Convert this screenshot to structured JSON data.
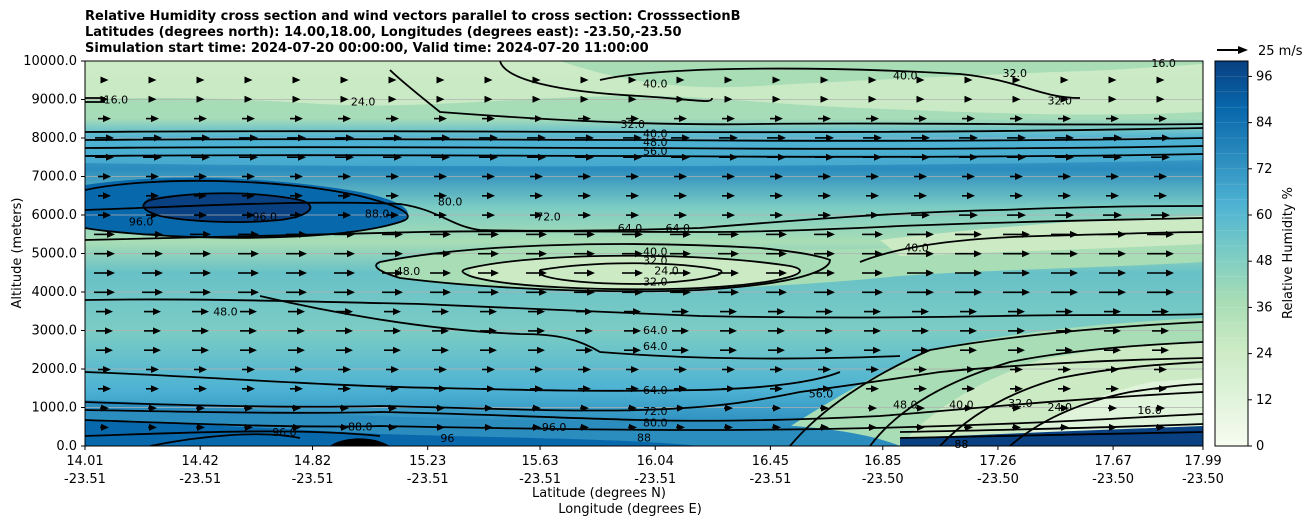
{
  "chart_data": {
    "type": "contour",
    "title_lines": [
      "Relative Humidity cross section and wind vectors parallel to cross section: CrosssectionB",
      "Latitudes (degrees north): 14.00,18.00, Longitudes (degrees east): -23.50,-23.50",
      "Simulation start time: 2024-07-20 00:00:00, Valid time: 2024-07-20 11:00:00"
    ],
    "xlabel_lines": [
      "Latitude (degrees N)",
      "Longitude (degrees E)"
    ],
    "ylabel": "Altitude (meters)",
    "ylim": [
      0,
      10000
    ],
    "y_ticks": [
      "0.0",
      "1000.0",
      "2000.0",
      "3000.0",
      "4000.0",
      "5000.0",
      "6000.0",
      "7000.0",
      "8000.0",
      "9000.0",
      "10000.0"
    ],
    "y_tick_values": [
      0,
      1000,
      2000,
      3000,
      4000,
      5000,
      6000,
      7000,
      8000,
      9000,
      10000
    ],
    "x_ticks": [
      {
        "lat": "14.01",
        "lon": "-23.51"
      },
      {
        "lat": "14.42",
        "lon": "-23.51"
      },
      {
        "lat": "14.82",
        "lon": "-23.51"
      },
      {
        "lat": "15.23",
        "lon": "-23.51"
      },
      {
        "lat": "15.63",
        "lon": "-23.51"
      },
      {
        "lat": "16.04",
        "lon": "-23.51"
      },
      {
        "lat": "16.45",
        "lon": "-23.51"
      },
      {
        "lat": "16.85",
        "lon": "-23.50"
      },
      {
        "lat": "17.26",
        "lon": "-23.50"
      },
      {
        "lat": "17.67",
        "lon": "-23.50"
      },
      {
        "lat": "17.99",
        "lon": "-23.50"
      }
    ],
    "colorbar": {
      "label": "Relative Humidity %",
      "ticks": [
        "0",
        "12",
        "24",
        "36",
        "48",
        "60",
        "72",
        "84",
        "96"
      ],
      "tick_values": [
        0,
        12,
        24,
        36,
        48,
        60,
        72,
        84,
        96
      ],
      "max": 100,
      "colormap": "GnBu"
    },
    "quiver_key": "25 m/s",
    "contour_labels": [
      {
        "text": "16.0",
        "lat": 14.12,
        "alt": 9000
      },
      {
        "text": "24.0",
        "lat": 15.0,
        "alt": 8950
      },
      {
        "text": "40.0",
        "lat": 16.04,
        "alt": 9420
      },
      {
        "text": "40.0",
        "lat": 16.93,
        "alt": 9620
      },
      {
        "text": "32.0",
        "lat": 17.32,
        "alt": 9690
      },
      {
        "text": "32.0",
        "lat": 17.48,
        "alt": 8980
      },
      {
        "text": "16.0",
        "lat": 17.85,
        "alt": 9950
      },
      {
        "text": "32.0",
        "lat": 15.96,
        "alt": 8360
      },
      {
        "text": "40.0",
        "lat": 16.04,
        "alt": 8120
      },
      {
        "text": "48.0",
        "lat": 16.04,
        "alt": 7890
      },
      {
        "text": "56.0",
        "lat": 16.04,
        "alt": 7660
      },
      {
        "text": "96.0",
        "lat": 14.21,
        "alt": 5830
      },
      {
        "text": "96.0",
        "lat": 14.65,
        "alt": 5960
      },
      {
        "text": "88.0",
        "lat": 15.05,
        "alt": 6040
      },
      {
        "text": "80.0",
        "lat": 15.31,
        "alt": 6350
      },
      {
        "text": "72.0",
        "lat": 15.66,
        "alt": 5960
      },
      {
        "text": "64.0",
        "lat": 15.95,
        "alt": 5660
      },
      {
        "text": "64.0",
        "lat": 16.12,
        "alt": 5660
      },
      {
        "text": "40.0",
        "lat": 16.04,
        "alt": 5050
      },
      {
        "text": "32.0",
        "lat": 16.04,
        "alt": 4820
      },
      {
        "text": "24.0",
        "lat": 16.08,
        "alt": 4560
      },
      {
        "text": "32.0",
        "lat": 16.04,
        "alt": 4270
      },
      {
        "text": "40.0",
        "lat": 16.97,
        "alt": 5150
      },
      {
        "text": "48.0",
        "lat": 15.16,
        "alt": 4540
      },
      {
        "text": "48.0",
        "lat": 14.51,
        "alt": 3490
      },
      {
        "text": "64.0",
        "lat": 16.04,
        "alt": 3010
      },
      {
        "text": "64.0",
        "lat": 16.04,
        "alt": 2600
      },
      {
        "text": "64.0",
        "lat": 16.04,
        "alt": 1460
      },
      {
        "text": "72.0",
        "lat": 16.04,
        "alt": 910
      },
      {
        "text": "80.0",
        "lat": 16.04,
        "alt": 610
      },
      {
        "text": "56.0",
        "lat": 16.63,
        "alt": 1370
      },
      {
        "text": "48.0",
        "lat": 16.93,
        "alt": 1080
      },
      {
        "text": "40.0",
        "lat": 17.13,
        "alt": 1080
      },
      {
        "text": "32.0",
        "lat": 17.34,
        "alt": 1120
      },
      {
        "text": "24.0",
        "lat": 17.48,
        "alt": 1010
      },
      {
        "text": "16.0",
        "lat": 17.8,
        "alt": 930
      },
      {
        "text": "88.0",
        "lat": 14.99,
        "alt": 510
      },
      {
        "text": "96.0",
        "lat": 14.72,
        "alt": 370
      },
      {
        "text": "96.0",
        "lat": 15.68,
        "alt": 500
      },
      {
        "text": "88",
        "lat": 16.0,
        "alt": 220
      },
      {
        "text": "96",
        "lat": 15.3,
        "alt": 210
      },
      {
        "text": "88",
        "lat": 17.13,
        "alt": 50
      }
    ]
  }
}
